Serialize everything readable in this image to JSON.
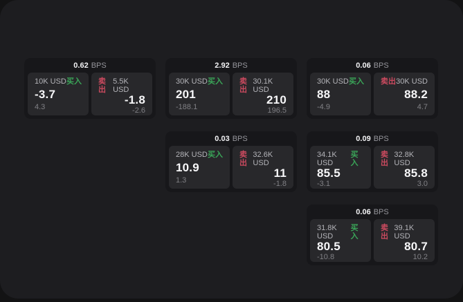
{
  "page": {
    "bps_unit": "BPS",
    "buy_label": "买入",
    "sell_label": "卖出"
  },
  "colors": {
    "buy": "#3aa558",
    "sell": "#cb4a5f",
    "surface": "#1d1d20",
    "card": "#17171a",
    "pane": "#28282b"
  },
  "cards": [
    {
      "bps": "0.62",
      "row": 1,
      "col": 1,
      "buy": {
        "amount": "10K USD",
        "price": "-3.7",
        "delta": "4.3"
      },
      "sell": {
        "amount": "5.5K USD",
        "price": "-1.8",
        "delta": "-2.6"
      }
    },
    {
      "bps": "2.92",
      "row": 1,
      "col": 2,
      "buy": {
        "amount": "30K USD",
        "price": "201",
        "delta": "-188.1"
      },
      "sell": {
        "amount": "30.1K USD",
        "price": "210",
        "delta": "196.5"
      }
    },
    {
      "bps": "0.06",
      "row": 1,
      "col": 3,
      "buy": {
        "amount": "30K USD",
        "price": "88",
        "delta": "-4.9"
      },
      "sell": {
        "amount": "30K USD",
        "price": "88.2",
        "delta": "4.7"
      }
    },
    {
      "bps": "0.03",
      "row": 2,
      "col": 2,
      "buy": {
        "amount": "28K USD",
        "price": "10.9",
        "delta": "1.3"
      },
      "sell": {
        "amount": "32.6K USD",
        "price": "11",
        "delta": "-1.8"
      }
    },
    {
      "bps": "0.09",
      "row": 2,
      "col": 3,
      "buy": {
        "amount": "34.1K USD",
        "price": "85.5",
        "delta": "-3.1"
      },
      "sell": {
        "amount": "32.8K USD",
        "price": "85.8",
        "delta": "3.0"
      }
    },
    {
      "bps": "0.06",
      "row": 3,
      "col": 3,
      "buy": {
        "amount": "31.8K USD",
        "price": "80.5",
        "delta": "-10.8"
      },
      "sell": {
        "amount": "39.1K USD",
        "price": "80.7",
        "delta": "10.2"
      }
    }
  ]
}
